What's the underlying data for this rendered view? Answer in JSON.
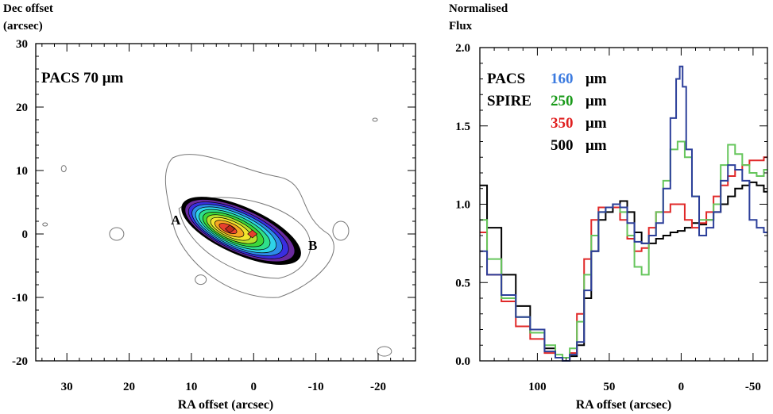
{
  "left_panel": {
    "chart_data": {
      "type": "contour",
      "title": "PACS 70 μm",
      "xlabel": "RA offset (arcsec)",
      "ylabel_line1": "Dec offset",
      "ylabel_line2": "(arcsec)",
      "xlim": [
        35,
        -26
      ],
      "ylim": [
        -20,
        30
      ],
      "xticks": [
        30,
        20,
        10,
        0,
        -10,
        -20
      ],
      "yticks": [
        30,
        20,
        10,
        0,
        -10,
        -20
      ],
      "markers": [
        {
          "label": "A",
          "ra": 12.5,
          "dec": 1.5
        },
        {
          "label": "B",
          "ra": -9.5,
          "dec": -2.5
        }
      ],
      "peaks": [
        {
          "ra": 3.8,
          "dec": 0.8
        },
        {
          "ra": 0.2,
          "dec": 0.0
        }
      ],
      "filled_levels": 11,
      "colormap": [
        "#000000",
        "#6a2a9e",
        "#3a2ee0",
        "#2d8be8",
        "#2fd3e8",
        "#2fe08a",
        "#3ed83a",
        "#b7e22e",
        "#f2e52e",
        "#f5a623",
        "#e8412e"
      ]
    }
  },
  "right_panel": {
    "chart_data": {
      "type": "line",
      "step": true,
      "xlabel": "RA offset (arcsec)",
      "ylabel_line1": "Normalised",
      "ylabel_line2": "Flux",
      "xlim": [
        140,
        -60
      ],
      "ylim": [
        0.0,
        2.0
      ],
      "xticks": [
        100,
        50,
        0,
        -50
      ],
      "yticks": [
        "0.0",
        "0.5",
        "1.0",
        "1.5",
        "2.0"
      ],
      "legend": {
        "row1_instrument": "PACS",
        "row2_instrument": "SPIRE",
        "unit": "μm"
      },
      "series": [
        {
          "name": "160",
          "color": "#3c66d8",
          "stroke": "#2c3f9a",
          "x": [
            140,
            130,
            120,
            110,
            100,
            90,
            85,
            80,
            75,
            70,
            65,
            60,
            55,
            50,
            45,
            40,
            35,
            30,
            25,
            20,
            15,
            10,
            5,
            2,
            0,
            -2,
            -5,
            -10,
            -15,
            -20,
            -25,
            -30,
            -35,
            -40,
            -45,
            -50,
            -55,
            -60
          ],
          "y": [
            0.7,
            0.55,
            0.42,
            0.28,
            0.2,
            0.06,
            0.02,
            0.0,
            0.04,
            0.12,
            0.45,
            0.7,
            0.95,
            0.98,
            1.0,
            0.98,
            0.88,
            0.76,
            0.75,
            0.8,
            0.88,
            1.1,
            1.55,
            1.8,
            1.88,
            1.75,
            1.35,
            1.05,
            0.8,
            0.85,
            0.95,
            1.15,
            1.25,
            1.22,
            1.15,
            0.9,
            0.85,
            0.82
          ]
        },
        {
          "name": "250",
          "color": "#1a9a1a",
          "stroke": "#66c65c",
          "x": [
            140,
            130,
            120,
            110,
            100,
            90,
            85,
            80,
            75,
            70,
            65,
            60,
            55,
            50,
            45,
            40,
            35,
            30,
            25,
            20,
            15,
            10,
            5,
            0,
            -5,
            -10,
            -15,
            -20,
            -25,
            -30,
            -35,
            -40,
            -45,
            -50,
            -55,
            -60
          ],
          "y": [
            0.9,
            0.65,
            0.4,
            0.28,
            0.18,
            0.1,
            0.04,
            0.02,
            0.08,
            0.25,
            0.55,
            0.8,
            0.95,
            0.98,
            1.0,
            0.95,
            0.8,
            0.6,
            0.55,
            0.8,
            0.95,
            1.15,
            1.35,
            1.4,
            1.3,
            1.05,
            0.9,
            0.9,
            1.0,
            1.25,
            1.38,
            1.32,
            1.25,
            1.2,
            1.18,
            1.22
          ]
        },
        {
          "name": "350",
          "color": "#e02020",
          "stroke": "#e02828",
          "x": [
            140,
            130,
            120,
            110,
            100,
            90,
            85,
            80,
            75,
            70,
            65,
            60,
            55,
            50,
            45,
            40,
            35,
            30,
            25,
            20,
            15,
            10,
            5,
            0,
            -5,
            -10,
            -15,
            -20,
            -25,
            -30,
            -35,
            -40,
            -45,
            -50,
            -55,
            -60
          ],
          "y": [
            0.82,
            0.55,
            0.38,
            0.22,
            0.14,
            0.05,
            0.02,
            0.0,
            0.05,
            0.3,
            0.65,
            0.9,
            0.98,
            0.98,
            0.98,
            0.9,
            0.78,
            0.7,
            0.72,
            0.85,
            0.95,
            0.95,
            1.0,
            1.0,
            0.9,
            0.85,
            0.88,
            0.95,
            1.05,
            1.12,
            1.18,
            1.22,
            1.25,
            1.28,
            1.28,
            1.3
          ]
        },
        {
          "name": "500",
          "color": "#000000",
          "stroke": "#000000",
          "x": [
            140,
            130,
            120,
            110,
            100,
            90,
            85,
            80,
            75,
            70,
            65,
            60,
            55,
            50,
            45,
            40,
            35,
            30,
            25,
            20,
            15,
            10,
            5,
            0,
            -5,
            -10,
            -15,
            -20,
            -25,
            -30,
            -35,
            -40,
            -45,
            -50,
            -55,
            -60
          ],
          "y": [
            1.12,
            0.85,
            0.55,
            0.35,
            0.18,
            0.08,
            0.02,
            0.0,
            0.03,
            0.1,
            0.4,
            0.7,
            0.9,
            0.95,
            1.0,
            1.02,
            0.95,
            0.82,
            0.75,
            0.75,
            0.78,
            0.8,
            0.82,
            0.83,
            0.85,
            0.88,
            0.87,
            0.9,
            0.95,
            1.0,
            1.05,
            1.1,
            1.12,
            1.14,
            1.12,
            1.08
          ]
        }
      ]
    }
  }
}
